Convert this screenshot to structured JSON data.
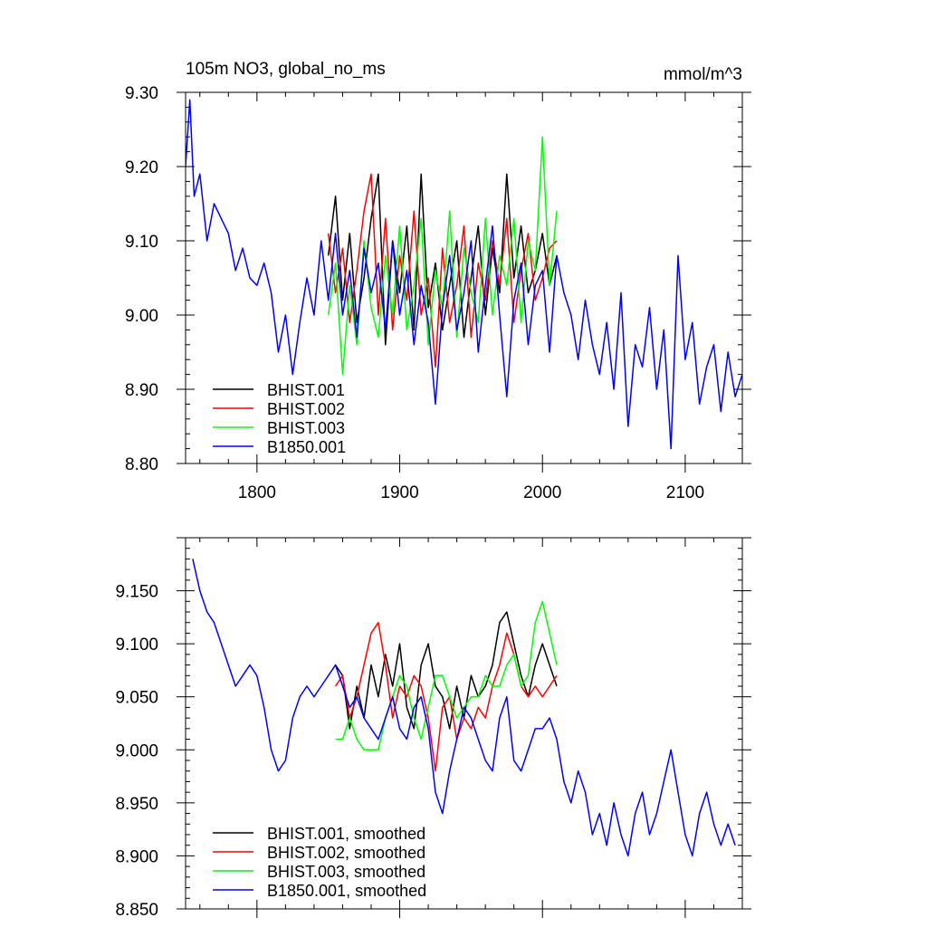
{
  "figure": {
    "left_title": "105m NO3, global_no_ms",
    "right_title": "mmol/m^3"
  },
  "chart_data": [
    {
      "type": "line",
      "xlim": [
        1750,
        2140
      ],
      "ylim": [
        8.8,
        9.3
      ],
      "x_ticks": [
        1800,
        1900,
        2000,
        2100
      ],
      "x_tick_labels": [
        "1800",
        "1900",
        "2000",
        "2100"
      ],
      "y_ticks": [
        8.8,
        8.9,
        9.0,
        9.1,
        9.2,
        9.3
      ],
      "y_tick_labels": [
        "8.80",
        "8.90",
        "9.00",
        "9.10",
        "9.20",
        "9.30"
      ],
      "legend_position": "bottom-left",
      "series": [
        {
          "name": "BHIST.001",
          "color": "#000000",
          "x": [
            1850,
            1855,
            1860,
            1865,
            1870,
            1875,
            1880,
            1885,
            1890,
            1895,
            1900,
            1905,
            1910,
            1915,
            1920,
            1925,
            1930,
            1935,
            1940,
            1945,
            1950,
            1955,
            1960,
            1965,
            1970,
            1975,
            1980,
            1985,
            1990,
            1995,
            2000,
            2005,
            2010
          ],
          "y": [
            9.08,
            9.16,
            9.02,
            9.11,
            8.99,
            9.05,
            9.13,
            9.19,
            8.96,
            9.1,
            9.03,
            9.12,
            8.98,
            9.19,
            9.01,
            9.07,
            8.98,
            9.04,
            9.1,
            8.97,
            9.05,
            9.12,
            9.0,
            9.09,
            9.03,
            9.19,
            9.05,
            9.12,
            9.03,
            9.06,
            9.11,
            9.04,
            9.08
          ]
        },
        {
          "name": "BHIST.002",
          "color": "#ff0000",
          "x": [
            1850,
            1855,
            1860,
            1865,
            1870,
            1875,
            1880,
            1885,
            1890,
            1895,
            1900,
            1905,
            1910,
            1915,
            1920,
            1925,
            1930,
            1935,
            1940,
            1945,
            1950,
            1955,
            1960,
            1965,
            1970,
            1975,
            1980,
            1985,
            1990,
            1995,
            2000,
            2005,
            2010
          ],
          "y": [
            9.11,
            9.03,
            9.09,
            8.99,
            9.06,
            9.14,
            9.19,
            9.0,
            9.13,
            8.98,
            9.08,
            9.02,
            9.14,
            9.0,
            9.05,
            8.93,
            9.09,
            8.99,
            9.04,
            9.12,
            8.97,
            9.07,
            9.02,
            9.1,
            9.04,
            9.13,
            8.99,
            9.06,
            9.11,
            9.02,
            9.05,
            9.09,
            9.1
          ]
        },
        {
          "name": "BHIST.003",
          "color": "#00ff00",
          "x": [
            1850,
            1855,
            1860,
            1865,
            1870,
            1875,
            1880,
            1885,
            1890,
            1895,
            1900,
            1905,
            1910,
            1915,
            1920,
            1925,
            1930,
            1935,
            1940,
            1945,
            1950,
            1955,
            1960,
            1965,
            1970,
            1975,
            1980,
            1985,
            1990,
            1995,
            2000,
            2005,
            2010
          ],
          "y": [
            9.0,
            9.07,
            8.92,
            9.04,
            8.96,
            9.1,
            9.01,
            8.97,
            9.08,
            9.0,
            9.12,
            8.98,
            9.04,
            9.13,
            8.96,
            9.06,
            9.01,
            9.14,
            8.97,
            9.09,
            9.03,
            8.99,
            9.13,
            9.0,
            9.08,
            9.04,
            9.13,
            8.99,
            9.1,
            9.06,
            9.24,
            9.04,
            9.14
          ]
        },
        {
          "name": "B1850.001",
          "color": "#0000ff",
          "x": [
            1750,
            1753,
            1756,
            1760,
            1765,
            1770,
            1775,
            1780,
            1785,
            1790,
            1795,
            1800,
            1805,
            1810,
            1815,
            1820,
            1825,
            1830,
            1835,
            1840,
            1845,
            1850,
            1855,
            1860,
            1865,
            1870,
            1875,
            1880,
            1885,
            1890,
            1895,
            1900,
            1905,
            1910,
            1915,
            1920,
            1925,
            1930,
            1935,
            1940,
            1945,
            1950,
            1955,
            1960,
            1965,
            1970,
            1975,
            1980,
            1985,
            1990,
            1995,
            2000,
            2005,
            2010,
            2015,
            2020,
            2025,
            2030,
            2035,
            2040,
            2045,
            2050,
            2055,
            2060,
            2065,
            2070,
            2075,
            2080,
            2085,
            2090,
            2095,
            2100,
            2105,
            2110,
            2115,
            2120,
            2125,
            2130,
            2135,
            2140
          ],
          "y": [
            9.2,
            9.29,
            9.16,
            9.19,
            9.1,
            9.15,
            9.13,
            9.11,
            9.06,
            9.09,
            9.05,
            9.04,
            9.07,
            9.03,
            8.95,
            9.0,
            8.92,
            8.99,
            9.05,
            9.0,
            9.1,
            9.02,
            9.11,
            9.0,
            9.06,
            8.97,
            9.09,
            9.03,
            9.07,
            8.98,
            9.1,
            9.0,
            9.06,
            8.96,
            9.04,
            8.99,
            8.88,
            9.01,
            9.08,
            8.98,
            9.03,
            9.1,
            8.95,
            9.04,
            9.12,
            9.0,
            8.89,
            9.02,
            9.07,
            8.96,
            9.04,
            9.06,
            8.95,
            9.08,
            9.03,
            9.0,
            8.94,
            9.02,
            8.96,
            8.92,
            8.99,
            8.9,
            9.03,
            8.85,
            8.96,
            8.93,
            9.01,
            8.9,
            8.98,
            8.82,
            9.08,
            8.94,
            8.99,
            8.88,
            8.93,
            8.96,
            8.87,
            8.95,
            8.89,
            8.92
          ]
        }
      ]
    },
    {
      "type": "line",
      "xlim": [
        1750,
        2140
      ],
      "ylim": [
        8.85,
        9.2
      ],
      "x_ticks": [
        1800,
        1900,
        2000,
        2100
      ],
      "y_ticks": [
        8.85,
        8.9,
        8.95,
        9.0,
        9.05,
        9.1,
        9.15
      ],
      "y_tick_labels": [
        "8.850",
        "8.900",
        "8.950",
        "9.000",
        "9.050",
        "9.100",
        "9.150"
      ],
      "legend_position": "bottom-left",
      "series": [
        {
          "name": "BHIST.001, smoothed",
          "color": "#000000",
          "x": [
            1855,
            1860,
            1865,
            1870,
            1875,
            1880,
            1885,
            1890,
            1895,
            1900,
            1905,
            1910,
            1915,
            1920,
            1925,
            1930,
            1935,
            1940,
            1945,
            1950,
            1955,
            1960,
            1965,
            1970,
            1975,
            1980,
            1985,
            1990,
            1995,
            2000,
            2005,
            2010
          ],
          "y": [
            9.08,
            9.07,
            9.02,
            9.06,
            9.03,
            9.08,
            9.05,
            9.09,
            9.06,
            9.1,
            9.04,
            9.02,
            9.08,
            9.1,
            9.06,
            9.05,
            9.02,
            9.06,
            9.03,
            9.07,
            9.05,
            9.06,
            9.08,
            9.12,
            9.13,
            9.1,
            9.07,
            9.05,
            9.08,
            9.1,
            9.08,
            9.06
          ]
        },
        {
          "name": "BHIST.002, smoothed",
          "color": "#ff0000",
          "x": [
            1855,
            1860,
            1865,
            1870,
            1875,
            1880,
            1885,
            1890,
            1895,
            1900,
            1905,
            1910,
            1915,
            1920,
            1925,
            1930,
            1935,
            1940,
            1945,
            1950,
            1955,
            1960,
            1965,
            1970,
            1975,
            1980,
            1985,
            1990,
            1995,
            2000,
            2005,
            2010
          ],
          "y": [
            9.06,
            9.07,
            9.03,
            9.05,
            9.08,
            9.11,
            9.12,
            9.08,
            9.03,
            9.06,
            9.05,
            9.07,
            9.06,
            9.03,
            8.98,
            9.04,
            9.05,
            9.01,
            9.03,
            9.02,
            9.04,
            9.03,
            9.06,
            9.08,
            9.11,
            9.09,
            9.06,
            9.05,
            9.06,
            9.05,
            9.06,
            9.07
          ]
        },
        {
          "name": "BHIST.003, smoothed",
          "color": "#00ff00",
          "x": [
            1855,
            1860,
            1865,
            1870,
            1875,
            1880,
            1885,
            1890,
            1895,
            1900,
            1905,
            1910,
            1915,
            1920,
            1925,
            1930,
            1935,
            1940,
            1945,
            1950,
            1955,
            1960,
            1965,
            1970,
            1975,
            1980,
            1985,
            1990,
            1995,
            2000,
            2005,
            2010
          ],
          "y": [
            9.01,
            9.01,
            9.03,
            9.01,
            9.0,
            9.0,
            9.0,
            9.03,
            9.05,
            9.07,
            9.06,
            9.03,
            9.01,
            9.04,
            9.07,
            9.07,
            9.05,
            9.03,
            9.04,
            9.05,
            9.05,
            9.07,
            9.06,
            9.06,
            9.08,
            9.09,
            9.06,
            9.07,
            9.12,
            9.14,
            9.11,
            9.08
          ]
        },
        {
          "name": "B1850.001, smoothed",
          "color": "#0000ff",
          "x": [
            1755,
            1760,
            1765,
            1770,
            1775,
            1780,
            1785,
            1790,
            1795,
            1800,
            1805,
            1810,
            1815,
            1820,
            1825,
            1830,
            1835,
            1840,
            1845,
            1850,
            1855,
            1860,
            1865,
            1870,
            1875,
            1880,
            1885,
            1890,
            1895,
            1900,
            1905,
            1910,
            1915,
            1920,
            1925,
            1930,
            1935,
            1940,
            1945,
            1950,
            1955,
            1960,
            1965,
            1970,
            1975,
            1980,
            1985,
            1990,
            1995,
            2000,
            2005,
            2010,
            2015,
            2020,
            2025,
            2030,
            2035,
            2040,
            2045,
            2050,
            2055,
            2060,
            2065,
            2070,
            2075,
            2080,
            2085,
            2090,
            2095,
            2100,
            2105,
            2110,
            2115,
            2120,
            2125,
            2130,
            2135
          ],
          "y": [
            9.18,
            9.15,
            9.13,
            9.12,
            9.1,
            9.08,
            9.06,
            9.07,
            9.08,
            9.07,
            9.04,
            9.0,
            8.98,
            8.99,
            9.03,
            9.05,
            9.06,
            9.05,
            9.06,
            9.07,
            9.08,
            9.06,
            9.04,
            9.05,
            9.03,
            9.02,
            9.01,
            9.03,
            9.05,
            9.02,
            9.01,
            9.04,
            9.05,
            9.02,
            8.96,
            8.94,
            8.98,
            9.01,
            9.04,
            9.03,
            9.01,
            8.99,
            8.98,
            9.03,
            9.05,
            8.99,
            8.98,
            9.0,
            9.02,
            9.02,
            9.03,
            9.01,
            8.97,
            8.95,
            8.98,
            8.96,
            8.92,
            8.94,
            8.91,
            8.95,
            8.92,
            8.9,
            8.94,
            8.96,
            8.92,
            8.94,
            8.97,
            9.0,
            8.96,
            8.92,
            8.9,
            8.94,
            8.96,
            8.93,
            8.91,
            8.93,
            8.91
          ]
        }
      ]
    }
  ]
}
